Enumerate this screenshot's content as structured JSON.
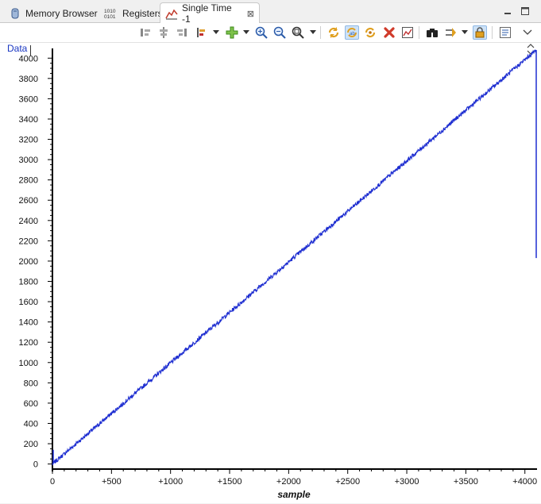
{
  "tabs": [
    {
      "label": "Memory Browser",
      "icon": "memory-icon",
      "active": false
    },
    {
      "label": "Registers",
      "icon": "registers-icon",
      "active": false
    },
    {
      "label": "Single Time -1",
      "icon": "graph-icon",
      "active": true,
      "close": "⊠"
    }
  ],
  "plot": {
    "data_label": "Data",
    "line_color": "#1f2fd1"
  },
  "chart_data": {
    "type": "line",
    "title": "",
    "xlabel": "sample",
    "ylabel": "",
    "xlim": [
      0,
      4096
    ],
    "ylim": [
      -50,
      4096
    ],
    "x_ticks": [
      0,
      500,
      1000,
      1500,
      2000,
      2500,
      3000,
      3500,
      4000
    ],
    "x_tick_labels": [
      "0",
      "+500",
      "+1000",
      "+1500",
      "+2000",
      "+2500",
      "+3000",
      "+3500",
      "+4000"
    ],
    "y_ticks": [
      0,
      200,
      400,
      600,
      800,
      1000,
      1200,
      1400,
      1600,
      1800,
      2000,
      2200,
      2400,
      2600,
      2800,
      3000,
      3200,
      3400,
      3600,
      3800,
      4000
    ],
    "y_tick_labels": [
      "0",
      "200",
      "400",
      "600",
      "800",
      "1000",
      "1200",
      "1400",
      "1600",
      "1800",
      "2000",
      "2200",
      "2400",
      "2600",
      "2800",
      "3000",
      "3200",
      "3400",
      "3600",
      "3800",
      "4000"
    ],
    "series": [
      {
        "x": [
          0,
          4096
        ],
        "y": [
          0,
          4080
        ]
      }
    ]
  }
}
